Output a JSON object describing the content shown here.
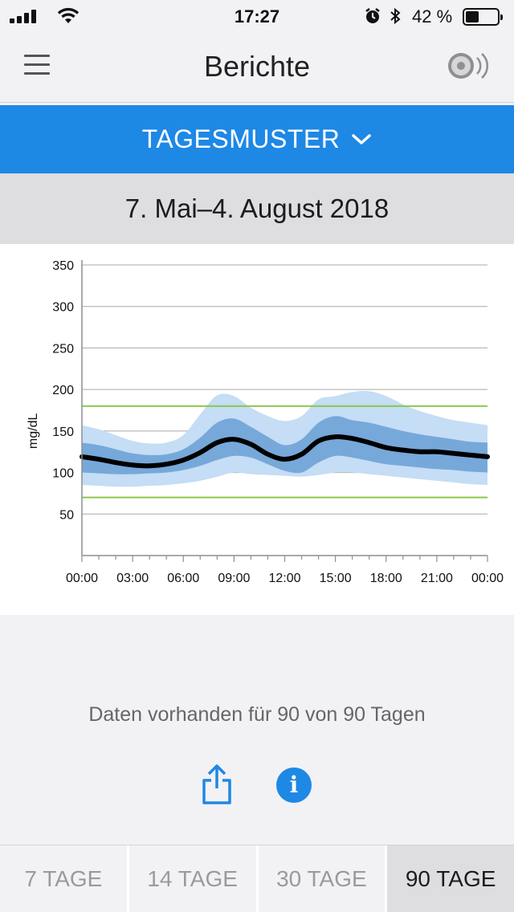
{
  "status_bar": {
    "time": "17:27",
    "battery_percent": "42 %",
    "battery_level": 0.42,
    "icons": [
      "signal-icon",
      "wifi-icon",
      "alarm-icon",
      "bluetooth-icon",
      "battery-icon"
    ]
  },
  "navbar": {
    "title": "Berichte",
    "left_icon": "menu-icon",
    "right_icon": "sensor-scan-icon"
  },
  "report_selector": {
    "label": "TAGESMUSTER",
    "icon": "chevron-down-icon",
    "color": "#1e88e5"
  },
  "date_range": "7. Mai–4. August 2018",
  "chart_data": {
    "type": "area",
    "ylabel": "mg/dL",
    "xlabel": "",
    "ylim": [
      0,
      350
    ],
    "y_ticks": [
      "50",
      "100",
      "150",
      "200",
      "250",
      "300",
      "350"
    ],
    "x_ticks": [
      "00:00",
      "03:00",
      "06:00",
      "09:00",
      "12:00",
      "15:00",
      "18:00",
      "21:00",
      "00:00"
    ],
    "target_range": {
      "low": 70,
      "high": 180,
      "color": "#8cc84b"
    },
    "grid": true,
    "x_hours": [
      0,
      1,
      2,
      3,
      4,
      5,
      6,
      7,
      8,
      9,
      10,
      11,
      12,
      13,
      14,
      15,
      16,
      17,
      18,
      19,
      20,
      21,
      22,
      23,
      24
    ],
    "series": [
      {
        "name": "",
        "color": "#c5ddf5",
        "p10": [
          85,
          84,
          83,
          83,
          84,
          85,
          87,
          90,
          95,
          100,
          98,
          97,
          96,
          95,
          97,
          100,
          100,
          98,
          96,
          94,
          92,
          90,
          88,
          86,
          85
        ],
        "p90": [
          157,
          152,
          145,
          138,
          135,
          136,
          145,
          170,
          193,
          192,
          178,
          168,
          162,
          168,
          188,
          192,
          197,
          198,
          192,
          182,
          174,
          168,
          163,
          160,
          157
        ]
      },
      {
        "name": "",
        "color": "#77a8da",
        "p25": [
          100,
          99,
          98,
          98,
          99,
          100,
          103,
          108,
          115,
          120,
          118,
          110,
          102,
          100,
          112,
          120,
          118,
          114,
          110,
          108,
          106,
          104,
          103,
          101,
          100
        ],
        "p75": [
          136,
          133,
          128,
          123,
          121,
          122,
          128,
          142,
          160,
          165,
          155,
          143,
          133,
          140,
          160,
          168,
          163,
          160,
          155,
          150,
          146,
          143,
          140,
          137,
          136
        ]
      },
      {
        "name": "",
        "color": "#000000",
        "median": [
          119,
          116,
          112,
          109,
          108,
          110,
          115,
          124,
          136,
          140,
          134,
          122,
          116,
          122,
          138,
          143,
          141,
          136,
          130,
          127,
          125,
          125,
          123,
          121,
          119
        ]
      }
    ]
  },
  "availability_text": "Daten vorhanden für 90 von 90 Tagen",
  "actions": {
    "share_icon": "share-icon",
    "info_icon": "info-icon",
    "info_glyph": "i"
  },
  "tabs": [
    {
      "label": "7 TAGE",
      "active": false
    },
    {
      "label": "14 TAGE",
      "active": false
    },
    {
      "label": "30 TAGE",
      "active": false
    },
    {
      "label": "90 TAGE",
      "active": true
    }
  ]
}
